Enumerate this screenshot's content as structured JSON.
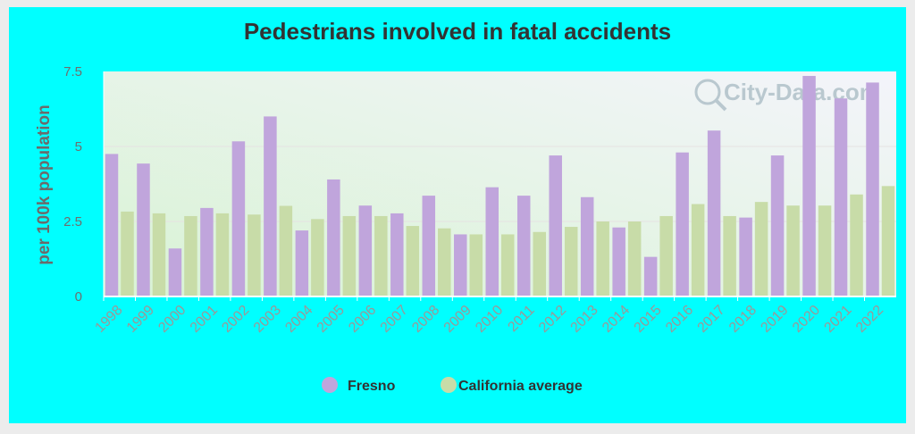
{
  "chart_data": {
    "type": "bar",
    "title": "Pedestrians involved in fatal accidents",
    "ylabel": "per 100k population",
    "xlabel": "",
    "ylim": [
      0,
      7.5
    ],
    "yticks": [
      0,
      2.5,
      5,
      7.5
    ],
    "ytick_labels": [
      "0",
      "2.5",
      "5",
      "7.5"
    ],
    "categories": [
      "1998",
      "1999",
      "2000",
      "2001",
      "2002",
      "2003",
      "2004",
      "2005",
      "2006",
      "2007",
      "2008",
      "2009",
      "2010",
      "2011",
      "2012",
      "2013",
      "2014",
      "2015",
      "2016",
      "2017",
      "2018",
      "2019",
      "2020",
      "2021",
      "2022"
    ],
    "series": [
      {
        "name": "Fresno",
        "color": "#c0a5dc",
        "values": [
          4.75,
          4.43,
          1.6,
          2.95,
          5.17,
          6.0,
          2.2,
          3.9,
          3.03,
          2.77,
          3.36,
          2.07,
          3.64,
          3.36,
          4.7,
          3.31,
          2.3,
          1.32,
          4.8,
          5.53,
          2.63,
          4.7,
          7.35,
          6.6,
          7.13
        ]
      },
      {
        "name": "California average",
        "color": "#c8dca8",
        "values": [
          2.83,
          2.77,
          2.68,
          2.77,
          2.73,
          3.02,
          2.58,
          2.68,
          2.68,
          2.35,
          2.27,
          2.07,
          2.07,
          2.15,
          2.32,
          2.5,
          2.5,
          2.68,
          3.08,
          2.68,
          3.15,
          3.03,
          3.03,
          3.4,
          3.68
        ]
      }
    ],
    "grid": true,
    "legend_position": "bottom",
    "watermark": "City-Data.com"
  }
}
